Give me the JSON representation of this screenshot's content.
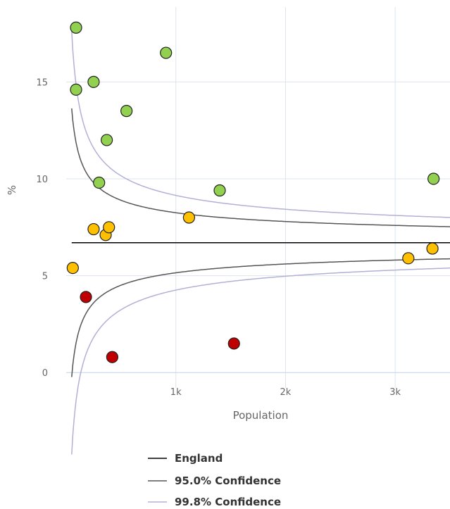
{
  "chart_data": {
    "type": "scatter",
    "title": "",
    "xlabel": "Population",
    "ylabel": "%",
    "xlim": [
      0,
      3500
    ],
    "ylim": [
      -0.5,
      18.5
    ],
    "x_ticks": [
      {
        "value": 1000,
        "label": "1k"
      },
      {
        "value": 2000,
        "label": "2k"
      },
      {
        "value": 3000,
        "label": "3k"
      }
    ],
    "y_ticks": [
      {
        "value": 0,
        "label": "0"
      },
      {
        "value": 5,
        "label": "5"
      },
      {
        "value": 10,
        "label": "10"
      },
      {
        "value": 15,
        "label": "15"
      }
    ],
    "grid": {
      "x": true,
      "y": true
    },
    "legend_position": "bottom",
    "colors": {
      "england": "#000000",
      "ci95": "#555555",
      "ci998": "#b3b0d6",
      "better": "#92d050",
      "similar": "#ffc000",
      "worse": "#c00000",
      "grid": "#dde3ee",
      "axis": "#ccd6eb"
    },
    "england_value": 6.7,
    "ci_x_range": [
      50,
      3500
    ],
    "points": [
      {
        "x": 90,
        "y": 17.8,
        "status": "better"
      },
      {
        "x": 90,
        "y": 14.6,
        "status": "better"
      },
      {
        "x": 250,
        "y": 15.0,
        "status": "better"
      },
      {
        "x": 550,
        "y": 13.5,
        "status": "better"
      },
      {
        "x": 370,
        "y": 12.0,
        "status": "better"
      },
      {
        "x": 910,
        "y": 16.5,
        "status": "better"
      },
      {
        "x": 300,
        "y": 9.8,
        "status": "better"
      },
      {
        "x": 1400,
        "y": 9.4,
        "status": "better"
      },
      {
        "x": 3350,
        "y": 10.0,
        "status": "better"
      },
      {
        "x": 250,
        "y": 7.4,
        "status": "similar"
      },
      {
        "x": 360,
        "y": 7.1,
        "status": "similar"
      },
      {
        "x": 390,
        "y": 7.5,
        "status": "similar"
      },
      {
        "x": 1120,
        "y": 8.0,
        "status": "similar"
      },
      {
        "x": 60,
        "y": 5.4,
        "status": "similar"
      },
      {
        "x": 3120,
        "y": 5.9,
        "status": "similar"
      },
      {
        "x": 3340,
        "y": 6.4,
        "status": "similar"
      },
      {
        "x": 180,
        "y": 3.9,
        "status": "worse"
      },
      {
        "x": 420,
        "y": 0.8,
        "status": "worse"
      },
      {
        "x": 1530,
        "y": 1.5,
        "status": "worse"
      }
    ],
    "series": [
      {
        "name": "England"
      },
      {
        "name": "95.0% Confidence"
      },
      {
        "name": "99.8% Confidence"
      }
    ]
  }
}
